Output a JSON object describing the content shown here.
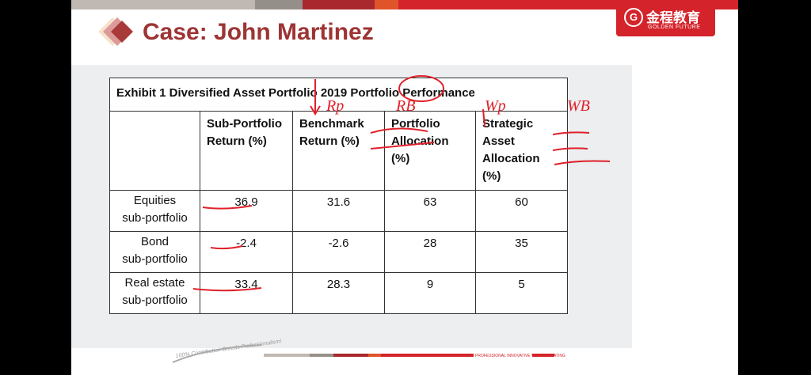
{
  "slide": {
    "title": "Case: John Martinez",
    "slogan": "100% Contribution Breeds Professionalism!",
    "footer_tagline": "PROFESSIONAL INNOVATIVE VALUE CREATING"
  },
  "logo": {
    "cn": "金程教育",
    "en": "GOLDEN FUTURE",
    "mark": "G"
  },
  "table": {
    "title": "Exhibit 1 Diversified Asset Portfolio 2019 Portfolio Performance",
    "headers": [
      "Sub-Portfolio Return (%)",
      "Benchmark Return (%)",
      "Portfolio Allocation (%)",
      "Strategic Asset Allocation (%)"
    ],
    "rows": [
      {
        "label1": "Equities",
        "label2": "sub-portfolio",
        "values": [
          "36.9",
          "31.6",
          "63",
          "60"
        ]
      },
      {
        "label1": "Bond",
        "label2": "sub-portfolio",
        "values": [
          "-2.4",
          "-2.6",
          "28",
          "35"
        ]
      },
      {
        "label1": "Real estate",
        "label2": "sub-portfolio",
        "values": [
          "33.4",
          "28.3",
          "9",
          "5"
        ]
      }
    ]
  },
  "annotations": [
    "Rp",
    "RB",
    "Wp",
    "WB"
  ],
  "colors": {
    "accent": "#9e3434",
    "brand": "#d4232a"
  }
}
